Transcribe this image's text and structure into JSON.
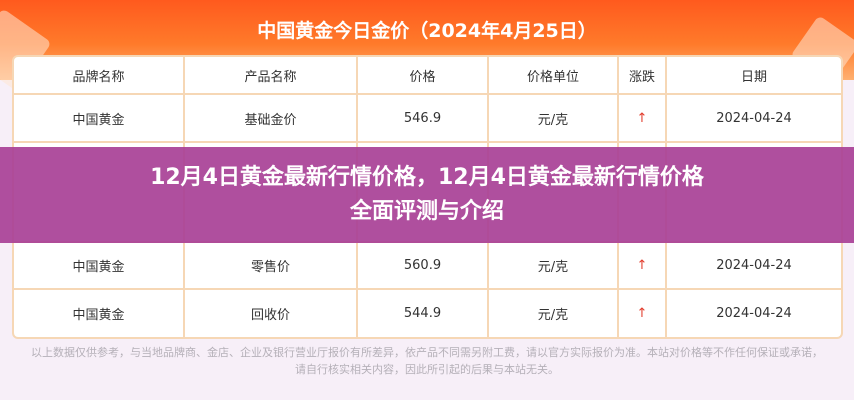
{
  "banner": {
    "title": "中国黄金今日金价（2024年4月25日）"
  },
  "table": {
    "headers": [
      "品牌名称",
      "产品名称",
      "价格",
      "价格单位",
      "涨跌",
      "日期"
    ],
    "rows": [
      {
        "brand": "中国黄金",
        "product": "基础金价",
        "price": "546.9",
        "unit": "元/克",
        "change": "↑",
        "date": "2024-04-24"
      },
      {
        "brand": "中国黄金",
        "product": "零售价",
        "price": "560.9",
        "unit": "元/克",
        "change": "↑",
        "date": "2024-04-24"
      },
      {
        "brand": "中国黄金",
        "product": "回收价",
        "price": "544.9",
        "unit": "元/克",
        "change": "↑",
        "date": "2024-04-24"
      }
    ]
  },
  "overlay": {
    "line1": "12月4日黄金最新行情价格，12月4日黄金最新行情价格",
    "line2": "全面评测与介绍"
  },
  "footer": {
    "text": "以上数据仅供参考，与当地品牌商、金店、企业及银行营业厅报价有所差异，依产品不同需另附工费，请以官方实际报价为准。本站对价格等不作任何保证或承诺，请自行核实相关内容，因此所引起的后果与本站无关。"
  },
  "colors": {
    "banner": "#ff5a1e",
    "overlay": "#a84096",
    "border": "#f6d7b5",
    "up": "#e23c2c"
  }
}
